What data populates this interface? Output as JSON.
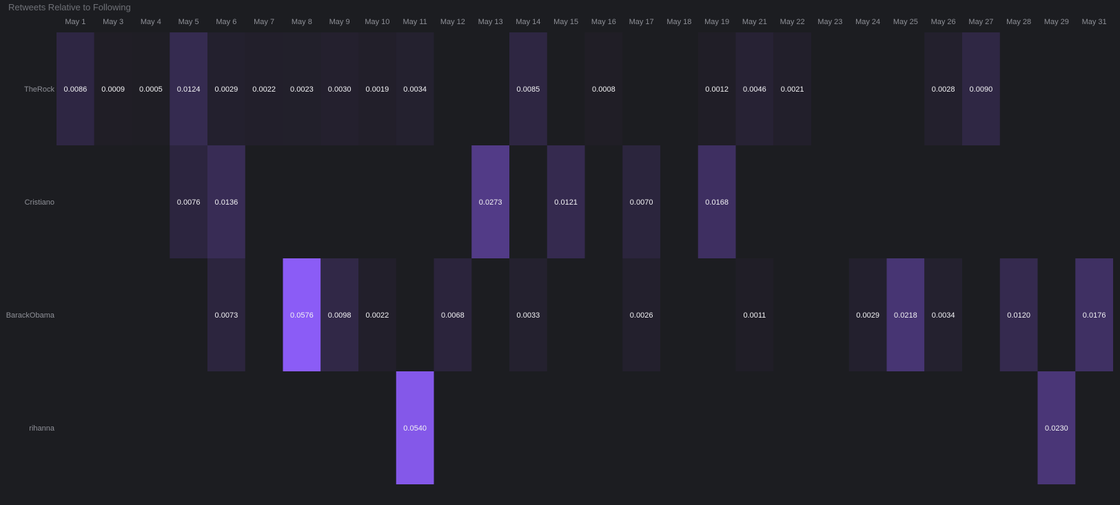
{
  "chart_data": {
    "type": "heatmap",
    "title": "Retweets Relative to Following",
    "columns": [
      "May 1",
      "May 3",
      "May 4",
      "May 5",
      "May 6",
      "May 7",
      "May 8",
      "May 9",
      "May 10",
      "May 11",
      "May 12",
      "May 13",
      "May 14",
      "May 15",
      "May 16",
      "May 17",
      "May 18",
      "May 19",
      "May 21",
      "May 22",
      "May 23",
      "May 24",
      "May 25",
      "May 26",
      "May 27",
      "May 28",
      "May 29",
      "May 31"
    ],
    "rows": [
      "TheRock",
      "Cristiano",
      "BarackObama",
      "rihanna"
    ],
    "values": [
      [
        0.0086,
        0.0009,
        0.0005,
        0.0124,
        0.0029,
        0.0022,
        0.0023,
        0.003,
        0.0019,
        0.0034,
        null,
        null,
        0.0085,
        null,
        0.0008,
        null,
        null,
        0.0012,
        0.0046,
        0.0021,
        null,
        null,
        null,
        0.0028,
        0.009,
        null,
        null,
        null
      ],
      [
        null,
        null,
        null,
        0.0076,
        0.0136,
        null,
        null,
        null,
        null,
        null,
        null,
        0.0273,
        null,
        0.0121,
        null,
        0.007,
        null,
        0.0168,
        null,
        null,
        null,
        null,
        null,
        null,
        null,
        null,
        null,
        null
      ],
      [
        null,
        null,
        null,
        null,
        0.0073,
        null,
        0.0576,
        0.0098,
        0.0022,
        null,
        0.0068,
        null,
        0.0033,
        null,
        null,
        0.0026,
        null,
        null,
        0.0011,
        null,
        null,
        0.0029,
        0.0218,
        0.0034,
        null,
        0.012,
        null,
        0.0176
      ],
      [
        null,
        null,
        null,
        null,
        null,
        null,
        null,
        null,
        null,
        0.054,
        null,
        null,
        null,
        null,
        null,
        null,
        null,
        null,
        null,
        null,
        null,
        null,
        null,
        null,
        null,
        null,
        0.023,
        null
      ]
    ],
    "value_labels": [
      [
        "0.0086",
        "0.0009",
        "0.0005",
        "0.0124",
        "0.0029",
        "0.0022",
        "0.0023",
        "0.0030",
        "0.0019",
        "0.0034",
        null,
        null,
        "0.0085",
        null,
        "0.0008",
        null,
        null,
        "0.0012",
        "0.0046",
        "0.0021",
        null,
        null,
        null,
        "0.0028",
        "0.0090",
        null,
        null,
        null
      ],
      [
        null,
        null,
        null,
        "0.0076",
        "0.0136",
        null,
        null,
        null,
        null,
        null,
        null,
        "0.0273",
        null,
        "0.0121",
        null,
        "0.0070",
        null,
        "0.0168",
        null,
        null,
        null,
        null,
        null,
        null,
        null,
        null,
        null,
        null
      ],
      [
        null,
        null,
        null,
        null,
        "0.0073",
        null,
        "0.0576",
        "0.0098",
        "0.0022",
        null,
        "0.0068",
        null,
        "0.0033",
        null,
        null,
        "0.0026",
        null,
        null,
        "0.0011",
        null,
        null,
        "0.0029",
        "0.0218",
        "0.0034",
        null,
        "0.0120",
        null,
        "0.0176"
      ],
      [
        null,
        null,
        null,
        null,
        null,
        null,
        null,
        null,
        null,
        "0.0540",
        null,
        null,
        null,
        null,
        null,
        null,
        null,
        null,
        null,
        null,
        null,
        null,
        null,
        null,
        null,
        null,
        "0.0230",
        null
      ]
    ],
    "color_range": [
      0,
      0.0576
    ],
    "colors": {
      "background": "#1c1d21",
      "low": "#1e1d23",
      "high": "#8b5cf6"
    }
  }
}
